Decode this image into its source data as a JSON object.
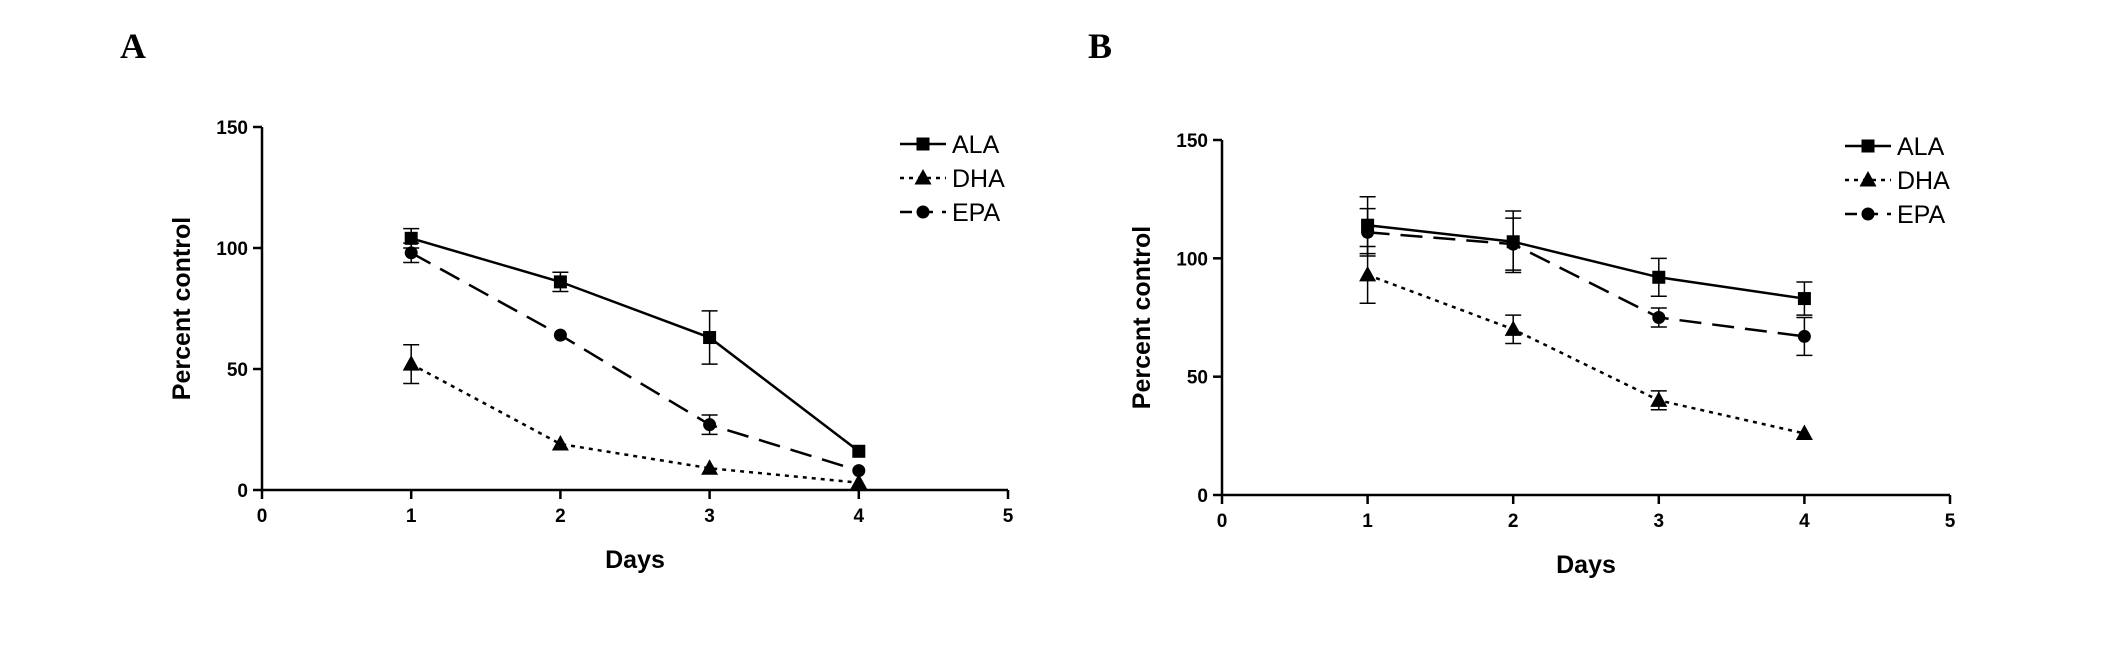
{
  "chart_data": [
    {
      "panel": "A",
      "type": "line",
      "xlabel": "Days",
      "ylabel": "Percent control",
      "xlim": [
        0,
        5
      ],
      "ylim": [
        0,
        150
      ],
      "xticks": [
        0,
        1,
        2,
        3,
        4,
        5
      ],
      "yticks": [
        0,
        50,
        100,
        150
      ],
      "grid": false,
      "legend": "top-right",
      "x": [
        1,
        2,
        3,
        4
      ],
      "series": [
        {
          "name": "ALA",
          "marker": "square",
          "dash": "solid",
          "values": [
            104,
            86,
            63,
            16
          ],
          "errors": [
            4,
            4,
            11,
            0
          ]
        },
        {
          "name": "DHA",
          "marker": "triangle",
          "dash": "dotted",
          "values": [
            52,
            19,
            9,
            3
          ],
          "errors": [
            8,
            0,
            0,
            0
          ]
        },
        {
          "name": "EPA",
          "marker": "circle",
          "dash": "dashed",
          "values": [
            98,
            64,
            27,
            8
          ],
          "errors": [
            4,
            0,
            4,
            0
          ]
        }
      ]
    },
    {
      "panel": "B",
      "type": "line",
      "xlabel": "Days",
      "ylabel": "Percent control",
      "xlim": [
        0,
        5
      ],
      "ylim": [
        0,
        150
      ],
      "xticks": [
        0,
        1,
        2,
        3,
        4,
        5
      ],
      "yticks": [
        0,
        50,
        100,
        150
      ],
      "grid": false,
      "legend": "top-right",
      "x": [
        1,
        2,
        3,
        4
      ],
      "series": [
        {
          "name": "ALA",
          "marker": "square",
          "dash": "solid",
          "values": [
            114,
            107,
            92,
            83
          ],
          "errors": [
            12,
            13,
            8,
            7
          ]
        },
        {
          "name": "DHA",
          "marker": "triangle",
          "dash": "dotted",
          "values": [
            93,
            70,
            40,
            26
          ],
          "errors": [
            12,
            6,
            4,
            0
          ]
        },
        {
          "name": "EPA",
          "marker": "circle",
          "dash": "dashed",
          "values": [
            111,
            106,
            75,
            67
          ],
          "errors": [
            10,
            11,
            4,
            8
          ]
        }
      ]
    }
  ]
}
